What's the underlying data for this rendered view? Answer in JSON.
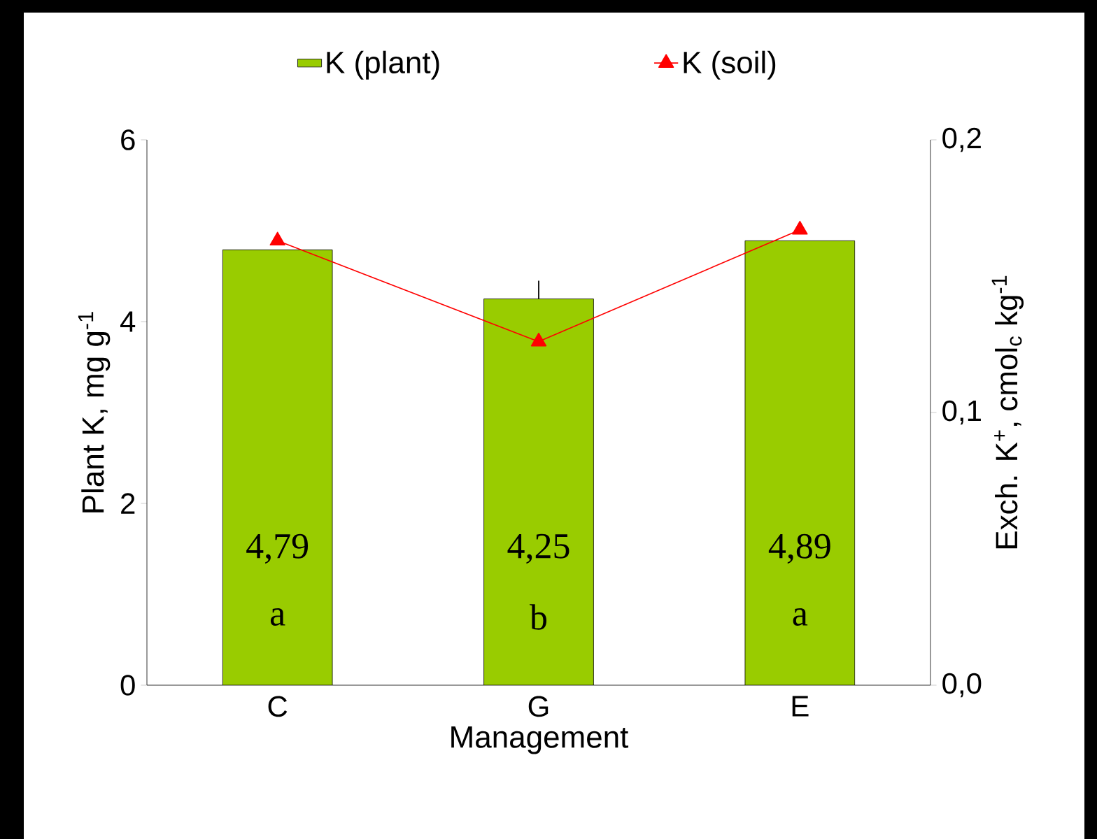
{
  "chart_data": {
    "type": "bar",
    "xlabel": "Management",
    "ylabel": "Plant K, mg g$^{-1}$",
    "y2label": "Exch. K$^{+}$, cmol$_{c}$ kg$^{-1}$",
    "categories": [
      "C",
      "G",
      "E"
    ],
    "series": [
      {
        "name": "K (plant)",
        "color": "#99cc00",
        "values": [
          4.79,
          4.25,
          4.89
        ],
        "errors": [
          null,
          [
            4.25,
            4.45
          ],
          null
        ],
        "value_labels": [
          "4,79",
          "4,25",
          "4,89"
        ]
      },
      {
        "name": "K (soil)",
        "type": "line",
        "axis": "y2",
        "color": "#ff0000",
        "marker": "triangle",
        "values": [
          0.163,
          0.126,
          0.167
        ]
      }
    ],
    "ylim": [
      0,
      6
    ],
    "yticks": [
      0,
      2,
      4,
      6
    ],
    "y2lim": [
      0,
      0.2
    ],
    "y2ticks": [
      {
        "value": 0,
        "label": "0,0"
      },
      {
        "value": 0.1,
        "label": "0,1"
      },
      {
        "value": 0.2,
        "label": "0,2"
      }
    ],
    "annotations": [
      "a",
      "b",
      "a"
    ],
    "legend": "top",
    "grid": false
  }
}
